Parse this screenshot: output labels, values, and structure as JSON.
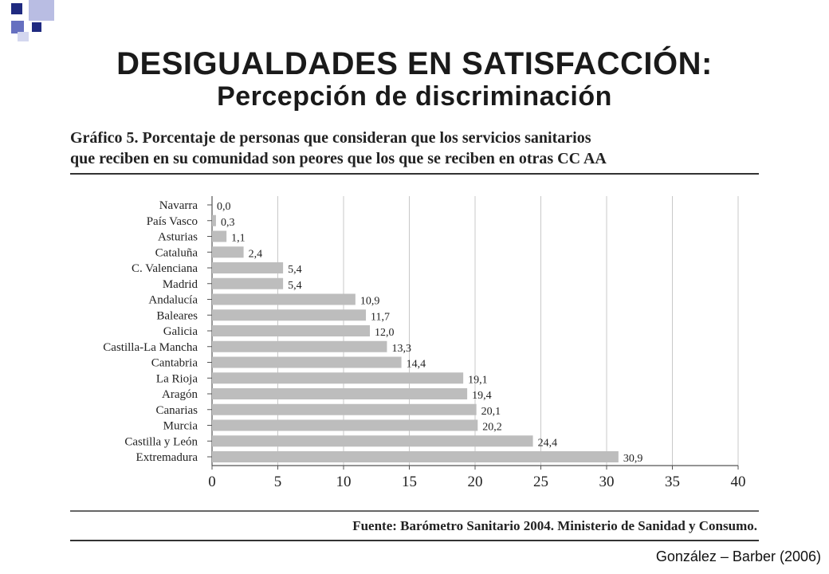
{
  "slide": {
    "title": "DESIGUALDADES EN SATISFACCIÓN:",
    "subtitle": "Percepción de discriminación",
    "credit": "González – Barber (2006)"
  },
  "colors": {
    "deco_navy": "#1f2a80",
    "deco_light": "#b9bde3",
    "deco_mid": "#6670c0",
    "bar": "#bdbdbd",
    "grid": "#c8c8c8",
    "rule": "#333333"
  },
  "chart_data": {
    "type": "bar",
    "orientation": "horizontal",
    "title_line1": "Gráfico 5. Porcentaje de personas que consideran que los servicios sanitarios",
    "title_line2": "que reciben en su comunidad son peores que los que se reciben en otras CC AA",
    "categories": [
      "Navarra",
      "País Vasco",
      "Asturias",
      "Cataluña",
      "C. Valenciana",
      "Madrid",
      "Andalucía",
      "Baleares",
      "Galicia",
      "Castilla-La Mancha",
      "Cantabria",
      "La Rioja",
      "Aragón",
      "Canarias",
      "Murcia",
      "Castilla y León",
      "Extremadura"
    ],
    "values": [
      0.0,
      0.3,
      1.1,
      2.4,
      5.4,
      5.4,
      10.9,
      11.7,
      12.0,
      13.3,
      14.4,
      19.1,
      19.4,
      20.1,
      20.2,
      24.4,
      30.9
    ],
    "value_labels": [
      "0,0",
      "0,3",
      "1,1",
      "2,4",
      "5,4",
      "5,4",
      "10,9",
      "11,7",
      "12,0",
      "13,3",
      "14,4",
      "19,1",
      "19,4",
      "20,1",
      "20,2",
      "24,4",
      "30,9"
    ],
    "xlim": [
      0,
      40
    ],
    "xticks": [
      0,
      5,
      10,
      15,
      20,
      25,
      30,
      35,
      40
    ],
    "grid": "vertical",
    "source": "Fuente: Barómetro Sanitario 2004. Ministerio de Sanidad y Consumo."
  }
}
